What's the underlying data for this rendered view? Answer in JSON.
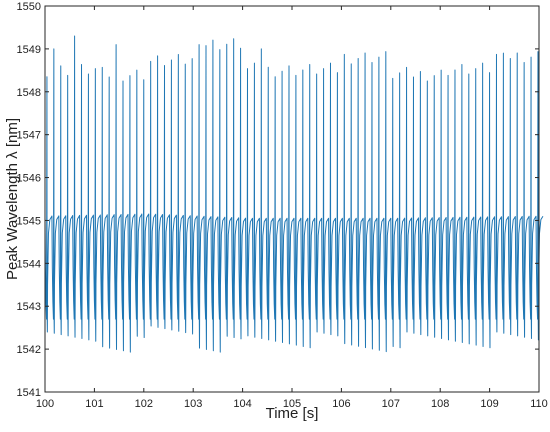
{
  "chart_data": {
    "type": "line",
    "title": "",
    "xlabel": "Time [s]",
    "ylabel": "Peak Wavelength λ [nm]",
    "xlim": [
      100,
      110
    ],
    "ylim": [
      1541,
      1550
    ],
    "xticks": [
      "100",
      "101",
      "102",
      "103",
      "104",
      "105",
      "106",
      "107",
      "108",
      "109",
      "110"
    ],
    "yticks": [
      "1541",
      "1542",
      "1543",
      "1544",
      "1545",
      "1546",
      "1547",
      "1548",
      "1549",
      "1550"
    ],
    "grid": false,
    "series": [
      {
        "color": "#1f77b4",
        "signal": {
          "period_s": 0.14,
          "start_s": 100.0,
          "end_s": 110.0,
          "baseline_nm": [
            [
              100,
              1545.1
            ],
            [
              102,
              1545.15
            ],
            [
              104,
              1545.05
            ],
            [
              107,
              1545.05
            ],
            [
              110,
              1545.1
            ]
          ],
          "trough_nm": 1542.7,
          "peak_max_nm": [
            1548.7,
            1548.6,
            1548.9,
            1549.3,
            1548.7,
            1548.7,
            1549.0,
            1548.6,
            1548.7,
            1549.0
          ],
          "peak_min_nm": [
            1542.0,
            1541.9,
            1542.2,
            1541.9,
            1542.0,
            1542.0,
            1541.85,
            1542.0,
            1542.0,
            1542.0
          ],
          "notable_peaks": [
            [
              100.1,
              1549.0
            ],
            [
              100.6,
              1549.3
            ],
            [
              101.4,
              1549.1
            ],
            [
              103.1,
              1549.1
            ],
            [
              104.3,
              1549.0
            ],
            [
              109.2,
              1548.9
            ]
          ]
        }
      }
    ]
  }
}
